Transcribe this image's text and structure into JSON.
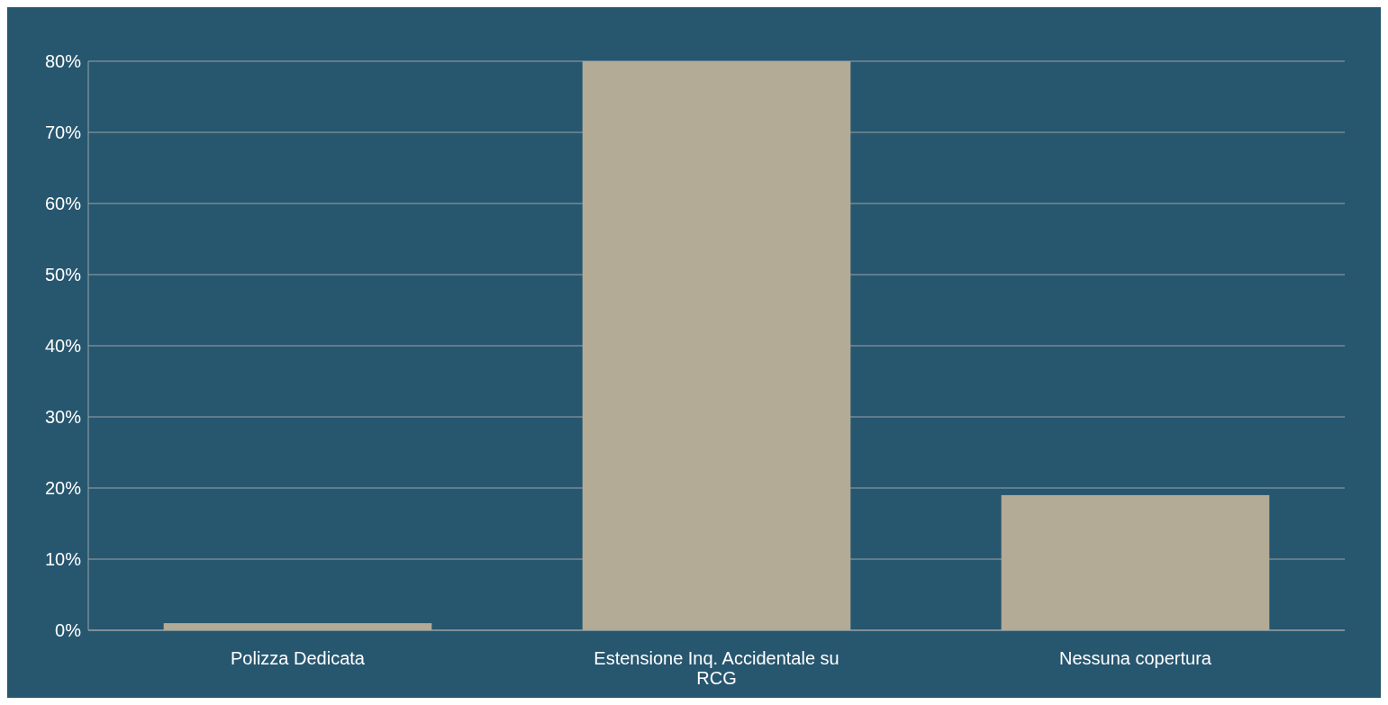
{
  "chart_data": {
    "type": "bar",
    "categories": [
      "Polizza Dedicata",
      "Estensione Inq. Accidentale su RCG",
      "Nessuna copertura"
    ],
    "values": [
      1,
      80,
      19
    ],
    "color": "#b3ab96",
    "ylim": [
      0,
      80
    ],
    "yticks": [
      {
        "value": 0,
        "label": "0%"
      },
      {
        "value": 10,
        "label": "10%"
      },
      {
        "value": 20,
        "label": "20%"
      },
      {
        "value": 30,
        "label": "30%"
      },
      {
        "value": 40,
        "label": "40%"
      },
      {
        "value": 50,
        "label": "50%"
      },
      {
        "value": 60,
        "label": "60%"
      },
      {
        "value": 70,
        "label": "70%"
      },
      {
        "value": 80,
        "label": "80%"
      }
    ],
    "grid": true
  }
}
